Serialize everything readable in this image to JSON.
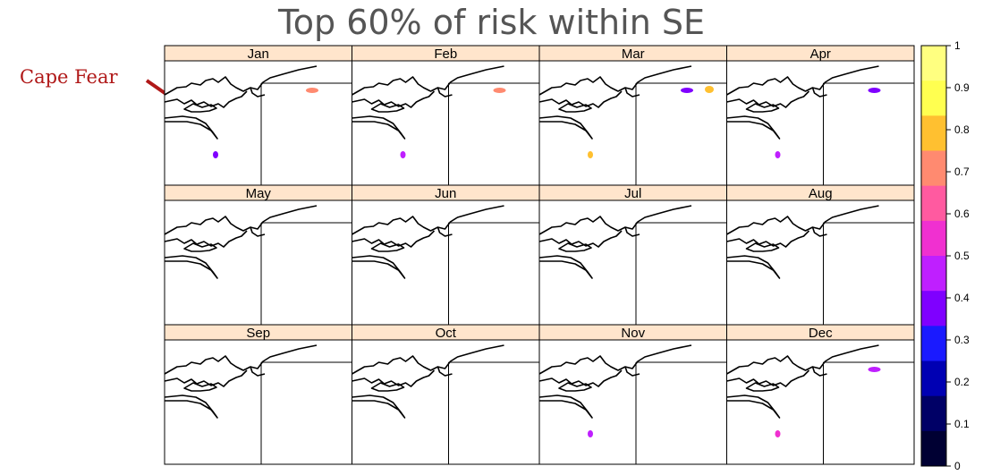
{
  "title": "Top 60% of risk within SE",
  "annotation": {
    "label": "Cape Fear",
    "color": "#b01818"
  },
  "panels": [
    {
      "month": "Jan",
      "risk": [
        {
          "loc": "cape-fear-offshore",
          "value": 0.35
        },
        {
          "loc": "northeast-coast",
          "value": 0.75
        }
      ]
    },
    {
      "month": "Feb",
      "risk": [
        {
          "loc": "cape-fear-offshore",
          "value": 0.45
        },
        {
          "loc": "northeast-coast",
          "value": 0.75
        }
      ]
    },
    {
      "month": "Mar",
      "risk": [
        {
          "loc": "cape-fear-offshore",
          "value": 0.8
        },
        {
          "loc": "northeast-coast",
          "value": 0.35
        },
        {
          "loc": "northeast-coast-tip",
          "value": 0.8
        }
      ]
    },
    {
      "month": "Apr",
      "risk": [
        {
          "loc": "cape-fear-offshore",
          "value": 0.45
        },
        {
          "loc": "northeast-coast",
          "value": 0.4
        }
      ]
    },
    {
      "month": "May",
      "risk": []
    },
    {
      "month": "Jun",
      "risk": []
    },
    {
      "month": "Jul",
      "risk": []
    },
    {
      "month": "Aug",
      "risk": []
    },
    {
      "month": "Sep",
      "risk": []
    },
    {
      "month": "Oct",
      "risk": []
    },
    {
      "month": "Nov",
      "risk": [
        {
          "loc": "cape-fear-offshore",
          "value": 0.45
        }
      ]
    },
    {
      "month": "Dec",
      "risk": [
        {
          "loc": "cape-fear-offshore",
          "value": 0.55
        },
        {
          "loc": "northeast-coast",
          "value": 0.45
        }
      ]
    }
  ],
  "colorbar": {
    "ticks": [
      "0",
      "0.1",
      "0.2",
      "0.3",
      "0.4",
      "0.5",
      "0.6",
      "0.7",
      "0.8",
      "0.9",
      "1"
    ],
    "range": [
      0,
      1
    ],
    "colors": [
      "#000033",
      "#000066",
      "#0000b3",
      "#1a1aff",
      "#7f00ff",
      "#bf1fff",
      "#f030d0",
      "#ff5aa0",
      "#ff8a70",
      "#ffc030",
      "#ffff50",
      "#ffff80"
    ]
  },
  "style": {
    "strip_color": "#ffe5cc",
    "map_line_color": "#000000"
  }
}
